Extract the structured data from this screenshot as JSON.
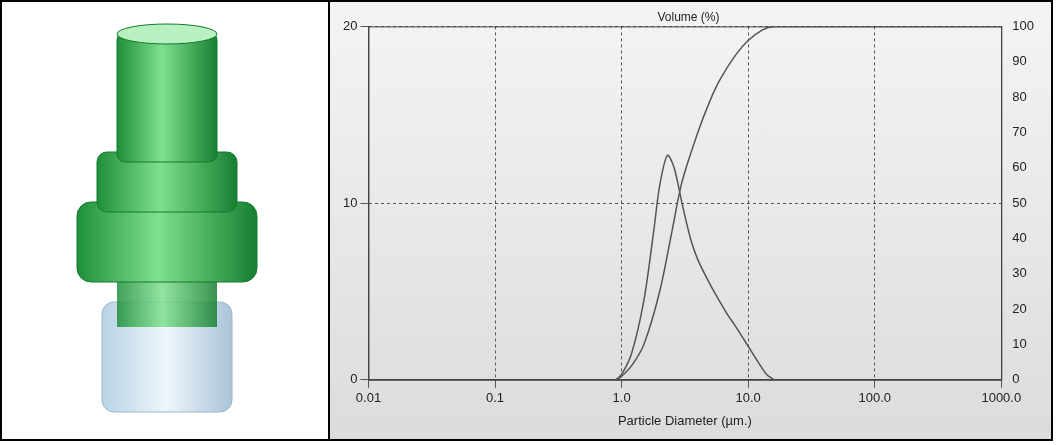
{
  "chart_data": {
    "type": "line",
    "title": "Volume (%)",
    "x_label": "Particle Diameter (µm.)",
    "log": "x",
    "grid": true,
    "xlim": [
      0.01,
      1000
    ],
    "xticks": [
      0.01,
      0.1,
      {
        "value": 1,
        "label": "1.0"
      },
      {
        "value": 10,
        "label": "10.0"
      },
      {
        "value": 100,
        "label": "100.0"
      },
      {
        "value": 1000,
        "label": "1000.0"
      }
    ],
    "ylim": [
      0,
      20
    ],
    "yticks": [
      0,
      10,
      20
    ],
    "y2lim": [
      0,
      100
    ],
    "y2ticks": [
      0,
      10,
      20,
      30,
      40,
      50,
      60,
      70,
      80,
      90,
      100
    ],
    "series": [
      {
        "color": "#555555",
        "marker": "none",
        "line_style": "solid",
        "x": [
          0.9,
          1.0,
          1.2,
          1.5,
          1.8,
          2.0,
          2.3,
          2.6,
          3.0,
          3.5,
          4,
          5,
          6,
          7,
          8,
          10,
          12,
          14,
          16
        ],
        "values": [
          0,
          0.3,
          1.5,
          4.5,
          8.5,
          11,
          12.7,
          12,
          10,
          8,
          6.8,
          5.4,
          4.4,
          3.6,
          3,
          1.9,
          1,
          0.3,
          0
        ]
      },
      {
        "color": "#555555",
        "marker": "none",
        "line_style": "solid",
        "axis": "y2",
        "x": [
          0.9,
          1.0,
          1.2,
          1.5,
          2,
          2.5,
          3,
          4,
          5,
          6,
          8,
          10,
          13,
          16,
          30,
          100,
          1000
        ],
        "values": [
          0,
          1,
          4,
          10,
          25,
          42,
          56,
          70,
          79,
          85,
          92,
          96,
          99,
          100,
          100,
          100,
          100
        ]
      }
    ]
  }
}
